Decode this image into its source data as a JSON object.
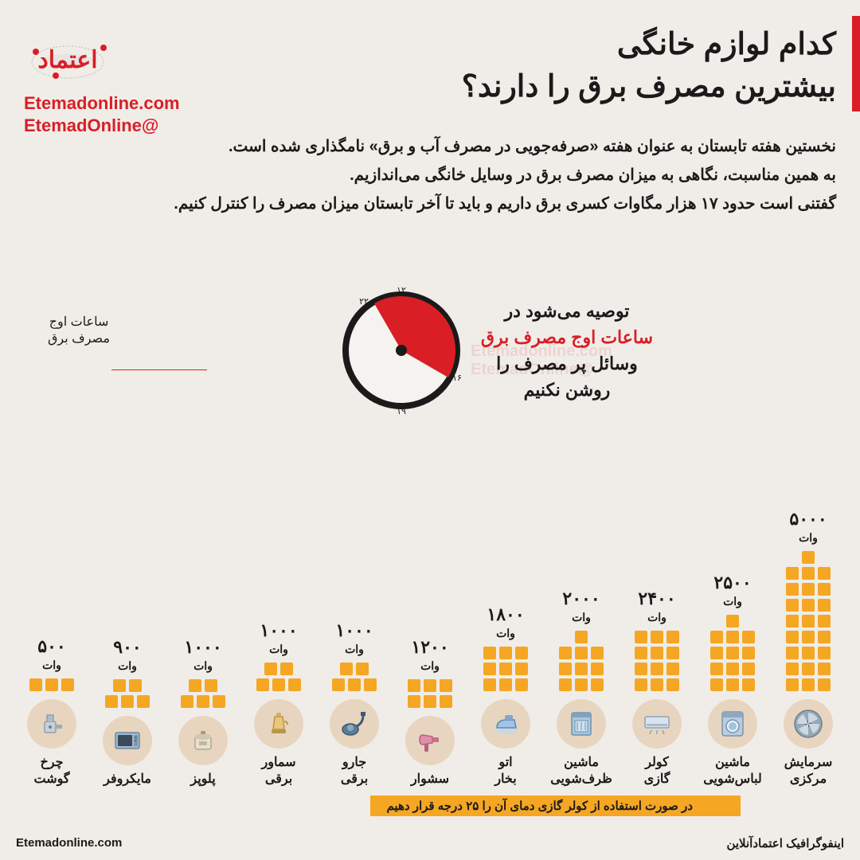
{
  "accent_color": "#d91e26",
  "block_color": "#f5a623",
  "icon_bg": "#e8d5c0",
  "bg": "#f0ede8",
  "text_color": "#1a1a1a",
  "title": {
    "line1": "کدام لوازم خانگی",
    "line2": "بیشترین مصرف برق را دارند؟"
  },
  "logo": {
    "site": "Etemadonline.com",
    "handle": "@EtemadOnline"
  },
  "intro": {
    "p1": "نخستین هفته تابستان به عنوان هفته «صرفه‌جویی در مصرف آب و برق» نامگذاری شده است.",
    "p2": "به همین مناسبت، نگاهی به میزان مصرف برق در وسایل خانگی می‌اندازیم.",
    "p3": "گفتنی است حدود ۱۷ هزار مگاوات کسری برق داریم و باید تا آخر تابستان میزان مصرف را کنترل کنیم."
  },
  "clock": {
    "tip_l1": "توصیه می‌شود در",
    "tip_l2": "ساعات اوج مصرف برق",
    "tip_l3": "وسائل پر مصرف را",
    "tip_l4": "روشن نکنیم",
    "caption_l1": "ساعات اوج",
    "caption_l2": "مصرف برق",
    "ticks": [
      "۱۲",
      "۱۶",
      "۱۹",
      "۲۲"
    ],
    "peak_color": "#d91e26",
    "face_color": "#f5f3ef",
    "ring_color": "#1a1a1a"
  },
  "unit": "وات",
  "block_unit_watts": 200,
  "blocks_per_row": 3,
  "appliances": [
    {
      "name": "سرمایش\nمرکزی",
      "value_fa": "۵۰۰۰",
      "watts": 5000,
      "icon": "fan"
    },
    {
      "name": "ماشین\nلباس‌شویی",
      "value_fa": "۲۵۰۰",
      "watts": 2500,
      "icon": "washer"
    },
    {
      "name": "کولر\nگازی",
      "value_fa": "۲۴۰۰",
      "watts": 2400,
      "icon": "ac"
    },
    {
      "name": "ماشین\nظرف‌شویی",
      "value_fa": "۲۰۰۰",
      "watts": 2000,
      "icon": "dishwasher"
    },
    {
      "name": "اتو\nبخار",
      "value_fa": "۱۸۰۰",
      "watts": 1800,
      "icon": "iron"
    },
    {
      "name": "سشوار",
      "value_fa": "۱۲۰۰",
      "watts": 1200,
      "icon": "hairdryer"
    },
    {
      "name": "جارو\nبرقی",
      "value_fa": "۱۰۰۰",
      "watts": 1000,
      "icon": "vacuum"
    },
    {
      "name": "سماور\nبرقی",
      "value_fa": "۱۰۰۰",
      "watts": 1000,
      "icon": "samovar"
    },
    {
      "name": "پلوپز",
      "value_fa": "۱۰۰۰",
      "watts": 1000,
      "icon": "ricecooker"
    },
    {
      "name": "مایکروفر",
      "value_fa": "۹۰۰",
      "watts": 900,
      "icon": "microwave"
    },
    {
      "name": "چرخ\nگوشت",
      "value_fa": "۵۰۰",
      "watts": 500,
      "icon": "grinder"
    }
  ],
  "note": "در صورت استفاده از کولر گازی دمای آن را ۲۵ درجه قرار دهیم",
  "footer": {
    "right": "اینفوگرافیک اعتمادآنلاین",
    "left": "Etemadonline.com"
  }
}
